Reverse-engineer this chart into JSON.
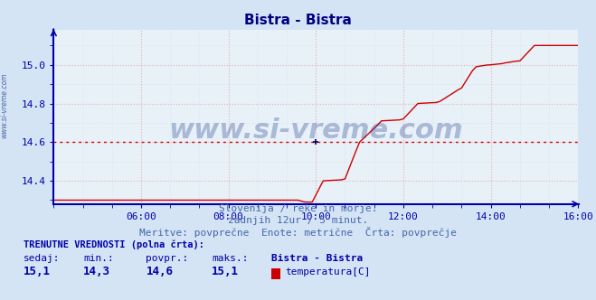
{
  "title": "Bistra - Bistra",
  "title_color": "#000080",
  "bg_color": "#d4e4f4",
  "plot_bg_color": "#e8f0f8",
  "grid_color": "#c8d4e4",
  "grid_color_minor": "#dce8f4",
  "axis_color": "#0000aa",
  "xlim": [
    0,
    144
  ],
  "ylim": [
    14.28,
    15.18
  ],
  "ytick_major": [
    14.4,
    14.6,
    14.8,
    15.0
  ],
  "xtick_labels": [
    "06:00",
    "08:00",
    "10:00",
    "12:00",
    "14:00",
    "16:00"
  ],
  "xtick_positions": [
    24,
    48,
    72,
    96,
    120,
    144
  ],
  "avg_value": 14.6,
  "line_color": "#cc0000",
  "avg_line_color": "#cc0000",
  "bottom_line_color": "#000099",
  "watermark": "www.si-vreme.com",
  "watermark_color": "#1a3a8a",
  "sub_text1": "Slovenija / reke in morje.",
  "sub_text2": "zadnjih 12ur / 5 minut.",
  "sub_text3": "Meritve: povprečne  Enote: metrične  Črta: povprečje",
  "legend_title": "TRENUTNE VREDNOSTI (polna črta):",
  "legend_col_headers": [
    "sedaj:",
    "min.:",
    "povpr.:",
    "maks.:",
    "Bistra - Bistra"
  ],
  "legend_col_values": [
    "15,1",
    "14,3",
    "14,6",
    "15,1",
    "temperatura[C]"
  ],
  "legend_swatch_color": "#cc0000",
  "left_label": "www.si-vreme.com",
  "left_label_color": "#1a3a8a",
  "text_color_sub": "#4466aa",
  "text_color_legend": "#0000aa"
}
